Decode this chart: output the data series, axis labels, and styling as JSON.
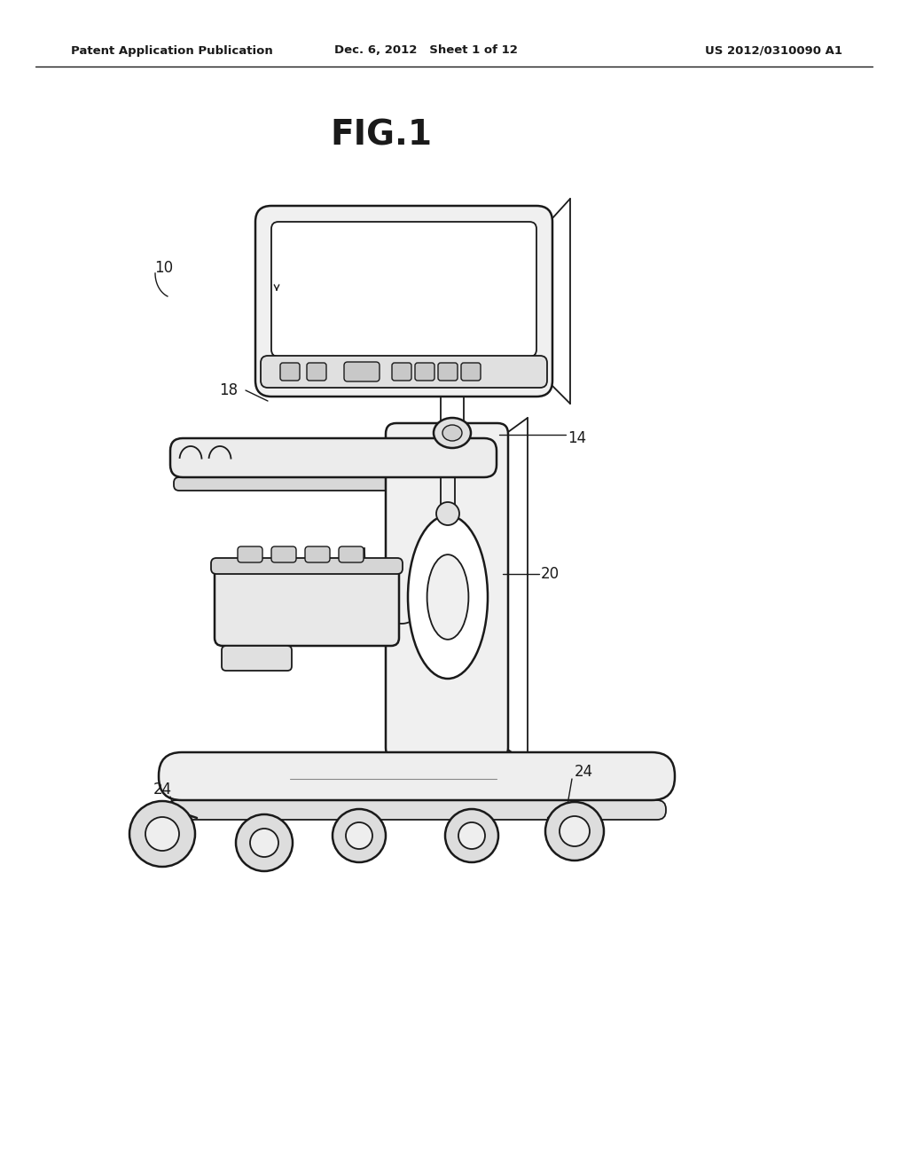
{
  "bg_color": "#ffffff",
  "line_color": "#1a1a1a",
  "header_left": "Patent Application Publication",
  "header_mid": "Dec. 6, 2012   Sheet 1 of 12",
  "header_right": "US 2012/0310090 A1",
  "fig_title": "FIG.1",
  "label_fontsize": 12,
  "header_fontsize": 9.5,
  "title_fontsize": 28
}
